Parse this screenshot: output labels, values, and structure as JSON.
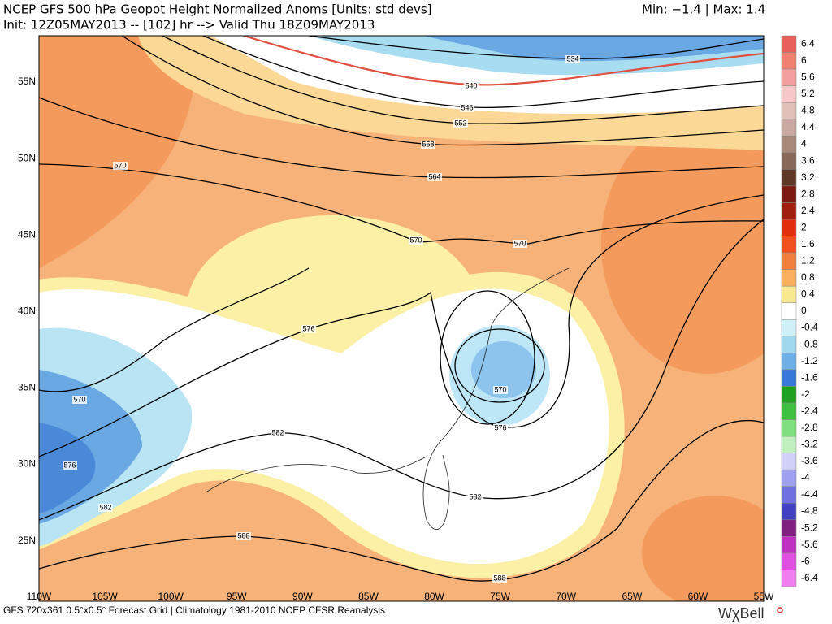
{
  "header": {
    "title": "NCEP GFS 500 hPa Geopot Height Normalized Anoms [Units: std devs]",
    "subtitle": "Init: 12Z05MAY2013 -- [102] hr --> Valid Thu 18Z09MAY2013",
    "range": "Min:  −1.4 | Max:   1.4"
  },
  "map": {
    "lat_labels": [
      "55N",
      "50N",
      "45N",
      "40N",
      "35N",
      "30N",
      "25N"
    ],
    "lon_labels": [
      "110W",
      "105W",
      "100W",
      "95W",
      "90W",
      "85W",
      "80W",
      "75W",
      "70W",
      "65W",
      "60W",
      "55W"
    ],
    "contour_labels": [
      534,
      540,
      546,
      552,
      558,
      564,
      570,
      570,
      570,
      576,
      570,
      570,
      576,
      582,
      576,
      582,
      582,
      588,
      588
    ]
  },
  "colorbar": {
    "levels": [
      6.4,
      6,
      5.6,
      5.2,
      4.8,
      4.4,
      4,
      3.6,
      3.2,
      2.8,
      2.4,
      2,
      1.6,
      1.2,
      0.8,
      0.4,
      0,
      -0.4,
      -0.8,
      -1.2,
      -1.6,
      -2,
      -2.4,
      -2.8,
      -3.2,
      -3.6,
      -4,
      -4.4,
      -4.8,
      -5.2,
      -5.6,
      -6,
      -6.4
    ],
    "colors": [
      "#e8605a",
      "#f08070",
      "#f4a0a0",
      "#f8c8c8",
      "#e0c0b8",
      "#c8a8a0",
      "#a88878",
      "#886858",
      "#603828",
      "#7a1a10",
      "#a02010",
      "#e03010",
      "#f05020",
      "#f08040",
      "#f8b060",
      "#f8e890",
      "#ffffff",
      "#d0f0f8",
      "#a0d8f0",
      "#70b0e8",
      "#3878d8",
      "#20a020",
      "#40c040",
      "#80e080",
      "#c0f0c0",
      "#d0d0f8",
      "#a0a0f0",
      "#7070e0",
      "#4040c0",
      "#802080",
      "#c030c0",
      "#e050e0",
      "#f080f0"
    ]
  },
  "footer": {
    "caption": "GFS 720x361 0.5°x0.5° Forecast Grid | Climatology 1981-2010 NCEP CFSR Reanalysis",
    "logo": "WχBell"
  }
}
